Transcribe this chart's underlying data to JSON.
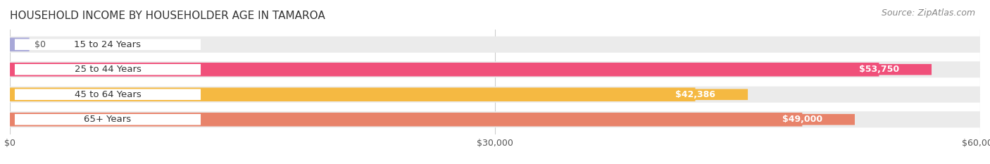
{
  "title": "HOUSEHOLD INCOME BY HOUSEHOLDER AGE IN TAMAROA",
  "source": "Source: ZipAtlas.com",
  "categories": [
    "15 to 24 Years",
    "25 to 44 Years",
    "45 to 64 Years",
    "65+ Years"
  ],
  "values": [
    0,
    53750,
    42386,
    49000
  ],
  "bar_colors": [
    "#a8a8d8",
    "#f0507a",
    "#f5b942",
    "#e8836a"
  ],
  "track_color": "#ebebeb",
  "xlim": [
    0,
    60000
  ],
  "xtick_labels": [
    "$0",
    "$30,000",
    "$60,000"
  ],
  "value_labels": [
    "$0",
    "$53,750",
    "$42,386",
    "$49,000"
  ],
  "background_color": "#ffffff",
  "bar_height": 0.55,
  "title_fontsize": 11,
  "label_fontsize": 9.5,
  "value_fontsize": 9,
  "source_fontsize": 9
}
